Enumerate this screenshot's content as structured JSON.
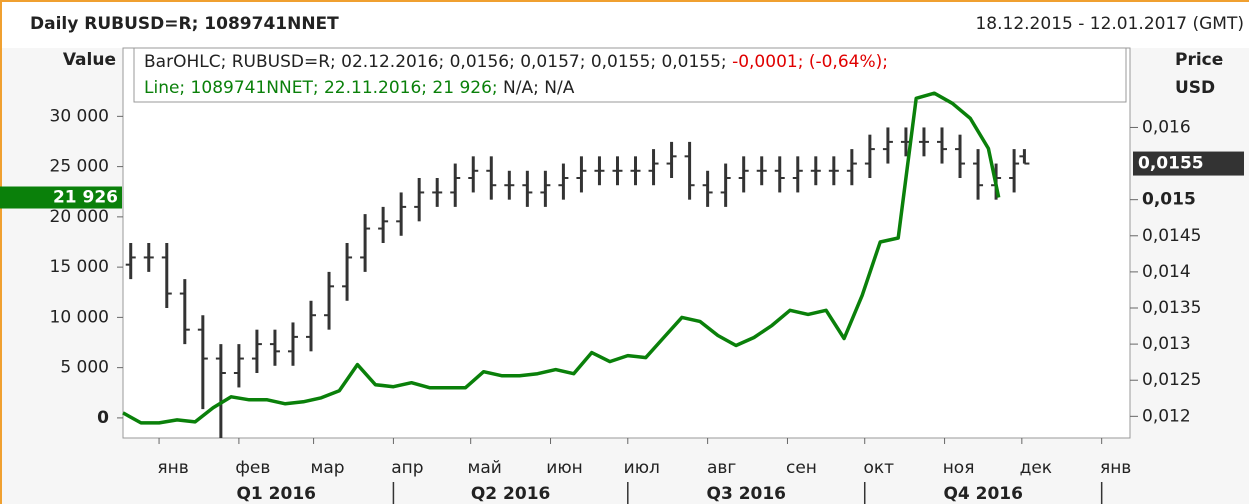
{
  "chart_data": {
    "type": "ohlc",
    "title": "Daily RUBUSD=R; 1089741NNET",
    "date_range": "18.12.2015 - 12.01.2017 (GMT)",
    "y_label": "Value",
    "y2_label": [
      "Price",
      "USD"
    ],
    "legend": {
      "bar_info": "BarOHLC; RUBUSD=R; 02.12.2016; 0,0156; 0,0157; 0,0155; 0,0155;",
      "bar_change": "-0,0001; (-0,64%);",
      "line_info": "Line; 1089741NNET; 22.11.2016; 21 926;",
      "line_rest": "N/A; N/A"
    },
    "xlim": [
      "2015-12-18",
      "2017-01-12"
    ],
    "xticks": [
      {
        "value": "2016-01-01",
        "label": "янв"
      },
      {
        "value": "2016-02-01",
        "label": "фев"
      },
      {
        "value": "2016-03-01",
        "label": "мар"
      },
      {
        "value": "2016-04-01",
        "label": "апр"
      },
      {
        "value": "2016-05-01",
        "label": "май"
      },
      {
        "value": "2016-06-01",
        "label": "июн"
      },
      {
        "value": "2016-07-01",
        "label": "июл"
      },
      {
        "value": "2016-08-01",
        "label": "авг"
      },
      {
        "value": "2016-09-01",
        "label": "сен"
      },
      {
        "value": "2016-10-01",
        "label": "окт"
      },
      {
        "value": "2016-11-01",
        "label": "ноя"
      },
      {
        "value": "2016-12-01",
        "label": "дек"
      },
      {
        "value": "2017-01-01",
        "label": "янв"
      }
    ],
    "quarters": [
      "Q1 2016",
      "Q2 2016",
      "Q3 2016",
      "Q4 2016"
    ],
    "ylim": [
      -2000,
      36800
    ],
    "yticks": [
      0,
      {
        "value": 5000,
        "label": "5 000"
      },
      {
        "value": 10000,
        "label": "10 000"
      },
      {
        "value": 15000,
        "label": "15 000"
      },
      {
        "value": 20000,
        "label": "20 000"
      },
      {
        "value": 25000,
        "label": "25 000"
      },
      {
        "value": 30000,
        "label": "30 000"
      }
    ],
    "y2lim": [
      0.0117,
      0.0171
    ],
    "y2ticks": [
      {
        "value": 0.012,
        "label": "0,012"
      },
      {
        "value": 0.0125,
        "label": "0,0125"
      },
      {
        "value": 0.013,
        "label": "0,013"
      },
      {
        "value": 0.0135,
        "label": "0,0135"
      },
      {
        "value": 0.014,
        "label": "0,014"
      },
      {
        "value": 0.0145,
        "label": "0,0145"
      },
      {
        "value": 0.015,
        "label": "0,015"
      },
      {
        "value": 0.016,
        "label": "0,016"
      }
    ],
    "last_value": {
      "value": 21926,
      "label": "21 926"
    },
    "last_price": {
      "value": 0.0155,
      "label": "0,0155"
    },
    "series": [
      {
        "name": "RUBUSD=R",
        "type": "ohlc",
        "axis": "y2",
        "color": "#333333",
        "x": [
          "2015-12-21",
          "2015-12-28",
          "2016-01-04",
          "2016-01-11",
          "2016-01-18",
          "2016-01-25",
          "2016-02-01",
          "2016-02-08",
          "2016-02-15",
          "2016-02-22",
          "2016-02-29",
          "2016-03-07",
          "2016-03-14",
          "2016-03-21",
          "2016-03-28",
          "2016-04-04",
          "2016-04-11",
          "2016-04-18",
          "2016-04-25",
          "2016-05-02",
          "2016-05-09",
          "2016-05-16",
          "2016-05-23",
          "2016-05-30",
          "2016-06-06",
          "2016-06-13",
          "2016-06-20",
          "2016-06-27",
          "2016-07-04",
          "2016-07-11",
          "2016-07-18",
          "2016-07-25",
          "2016-08-01",
          "2016-08-08",
          "2016-08-15",
          "2016-08-22",
          "2016-08-29",
          "2016-09-05",
          "2016-09-12",
          "2016-09-19",
          "2016-09-26",
          "2016-10-03",
          "2016-10-10",
          "2016-10-17",
          "2016-10-24",
          "2016-10-31",
          "2016-11-07",
          "2016-11-14",
          "2016-11-21",
          "2016-11-28",
          "2016-12-02"
        ],
        "open": [
          0.0141,
          0.0142,
          0.0142,
          0.0137,
          0.0132,
          0.0128,
          0.0126,
          0.0128,
          0.013,
          0.0129,
          0.0131,
          0.0134,
          0.0138,
          0.0142,
          0.0146,
          0.0147,
          0.0149,
          0.0151,
          0.0151,
          0.0153,
          0.0154,
          0.0152,
          0.0152,
          0.0151,
          0.0152,
          0.0153,
          0.0154,
          0.0154,
          0.0154,
          0.0154,
          0.0155,
          0.0156,
          0.0152,
          0.0151,
          0.0153,
          0.0154,
          0.0154,
          0.0153,
          0.0154,
          0.0154,
          0.0154,
          0.0155,
          0.0157,
          0.0158,
          0.0158,
          0.0158,
          0.0157,
          0.0155,
          0.0152,
          0.0153,
          0.0156
        ],
        "high": [
          0.0144,
          0.0144,
          0.0144,
          0.0139,
          0.0134,
          0.013,
          0.013,
          0.0132,
          0.0132,
          0.0133,
          0.0136,
          0.014,
          0.0144,
          0.0148,
          0.0149,
          0.0151,
          0.0153,
          0.0153,
          0.0155,
          0.0156,
          0.0156,
          0.0154,
          0.0154,
          0.0154,
          0.0155,
          0.0156,
          0.0156,
          0.0156,
          0.0156,
          0.0157,
          0.0158,
          0.0158,
          0.0154,
          0.0155,
          0.0156,
          0.0156,
          0.0156,
          0.0156,
          0.0156,
          0.0156,
          0.0157,
          0.0159,
          0.016,
          0.016,
          0.016,
          0.016,
          0.0159,
          0.0157,
          0.0155,
          0.0157,
          0.0157
        ],
        "low": [
          0.0139,
          0.014,
          0.0135,
          0.013,
          0.0121,
          0.0117,
          0.0124,
          0.0126,
          0.0127,
          0.0127,
          0.0129,
          0.0132,
          0.0136,
          0.014,
          0.0144,
          0.0145,
          0.0147,
          0.0149,
          0.0149,
          0.0151,
          0.015,
          0.015,
          0.0149,
          0.0149,
          0.015,
          0.0151,
          0.0152,
          0.0152,
          0.0152,
          0.0152,
          0.0153,
          0.015,
          0.0149,
          0.0149,
          0.0151,
          0.0152,
          0.0151,
          0.0151,
          0.0152,
          0.0152,
          0.0152,
          0.0153,
          0.0155,
          0.0156,
          0.0156,
          0.0155,
          0.0153,
          0.015,
          0.015,
          0.0151,
          0.0155
        ],
        "close": [
          0.0142,
          0.0142,
          0.0137,
          0.0132,
          0.0128,
          0.0126,
          0.0128,
          0.013,
          0.0129,
          0.0131,
          0.0134,
          0.0138,
          0.0142,
          0.0146,
          0.0147,
          0.0149,
          0.0151,
          0.0151,
          0.0153,
          0.0154,
          0.0152,
          0.0152,
          0.0151,
          0.0152,
          0.0153,
          0.0154,
          0.0154,
          0.0154,
          0.0154,
          0.0155,
          0.0156,
          0.0152,
          0.0151,
          0.0153,
          0.0154,
          0.0154,
          0.0153,
          0.0154,
          0.0154,
          0.0154,
          0.0155,
          0.0157,
          0.0158,
          0.0158,
          0.0158,
          0.0157,
          0.0155,
          0.0152,
          0.0153,
          0.0155,
          0.0155
        ]
      },
      {
        "name": "1089741NNET",
        "type": "line",
        "axis": "y",
        "color": "#0a800a",
        "x": [
          "2015-12-18",
          "2015-12-25",
          "2016-01-01",
          "2016-01-08",
          "2016-01-15",
          "2016-01-22",
          "2016-01-29",
          "2016-02-05",
          "2016-02-12",
          "2016-02-19",
          "2016-02-26",
          "2016-03-04",
          "2016-03-11",
          "2016-03-18",
          "2016-03-25",
          "2016-04-01",
          "2016-04-08",
          "2016-04-15",
          "2016-04-22",
          "2016-04-29",
          "2016-05-06",
          "2016-05-13",
          "2016-05-20",
          "2016-05-27",
          "2016-06-03",
          "2016-06-10",
          "2016-06-17",
          "2016-06-24",
          "2016-07-01",
          "2016-07-08",
          "2016-07-15",
          "2016-07-22",
          "2016-07-29",
          "2016-08-05",
          "2016-08-12",
          "2016-08-19",
          "2016-08-26",
          "2016-09-02",
          "2016-09-09",
          "2016-09-16",
          "2016-09-23",
          "2016-09-30",
          "2016-10-07",
          "2016-10-14",
          "2016-10-21",
          "2016-10-28",
          "2016-11-04",
          "2016-11-11",
          "2016-11-18",
          "2016-11-22"
        ],
        "values": [
          500,
          -500,
          -500,
          -200,
          -400,
          1000,
          2100,
          1800,
          1800,
          1400,
          1600,
          2000,
          2700,
          5300,
          3300,
          3100,
          3500,
          3000,
          3000,
          3000,
          4600,
          4200,
          4200,
          4400,
          4800,
          4400,
          6500,
          5600,
          6200,
          6000,
          8000,
          10000,
          9600,
          8200,
          7200,
          8000,
          9200,
          10700,
          10300,
          10700,
          7900,
          12200,
          17500,
          17900,
          31800,
          32300,
          31300,
          29800,
          26800,
          21926
        ]
      }
    ]
  }
}
